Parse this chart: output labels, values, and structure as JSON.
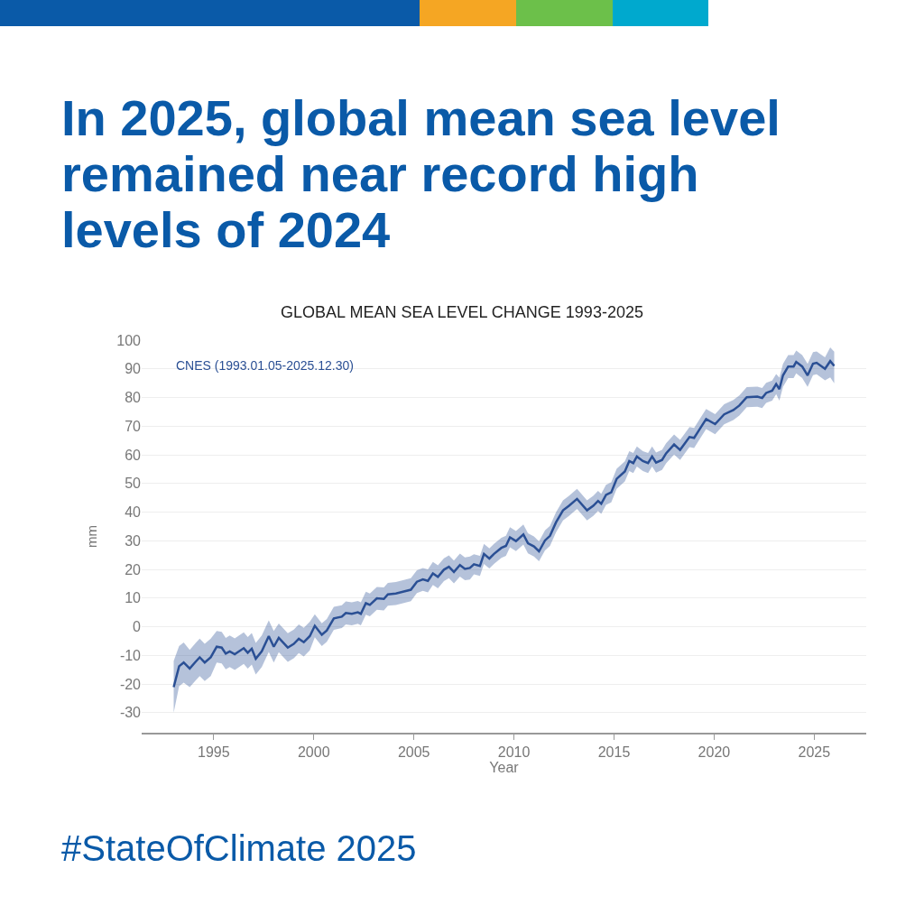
{
  "chart_data": {
    "type": "line",
    "title": "In 2025, global mean sea level remained near record high levels of 2024",
    "subtitle": "GLOBAL MEAN SEA LEVEL CHANGE 1993-2025",
    "xlabel": "Year",
    "ylabel": "mm",
    "annotations": [
      "#StateOfClimate 2025"
    ],
    "x": [
      1993.0,
      1993.27,
      1993.5,
      1993.8,
      1994.1,
      1994.3,
      1994.55,
      1994.85,
      1995.15,
      1995.4,
      1995.6,
      1995.8,
      1996.05,
      1996.5,
      1996.7,
      1996.9,
      1997.1,
      1997.4,
      1997.75,
      1998.0,
      1998.25,
      1998.7,
      1999.0,
      1999.25,
      1999.5,
      1999.8,
      2000.05,
      2000.4,
      2000.65,
      2001.0,
      2001.4,
      2001.6,
      2001.9,
      2002.2,
      2002.35,
      2002.6,
      2002.8,
      2003.15,
      2003.5,
      2003.7,
      2004.1,
      2004.5,
      2004.85,
      2005.15,
      2005.45,
      2005.7,
      2005.95,
      2006.2,
      2006.5,
      2006.75,
      2007.0,
      2007.3,
      2007.55,
      2007.8,
      2008.0,
      2008.3,
      2008.5,
      2008.77,
      2009.0,
      2009.37,
      2009.6,
      2009.8,
      2010.1,
      2010.47,
      2010.7,
      2011.0,
      2011.25,
      2011.55,
      2011.8,
      2012.1,
      2012.45,
      2012.75,
      2013.15,
      2013.65,
      2013.96,
      2014.2,
      2014.36,
      2014.6,
      2014.86,
      2015.13,
      2015.54,
      2015.76,
      2015.96,
      2016.14,
      2016.44,
      2016.7,
      2016.9,
      2017.1,
      2017.4,
      2017.6,
      2018.0,
      2018.3,
      2018.77,
      2019.0,
      2019.22,
      2019.6,
      2020.05,
      2020.5,
      2020.96,
      2021.26,
      2021.63,
      2022.16,
      2022.4,
      2022.6,
      2022.9,
      2023.1,
      2023.26,
      2023.44,
      2023.7,
      2023.97,
      2024.1,
      2024.4,
      2024.67,
      2024.94,
      2025.12,
      2025.54,
      2025.8,
      2026.0
    ],
    "series": [
      {
        "name": "CNES (1993.01.05-2025.12.30)",
        "color": "#2a4f94",
        "values": [
          -21.1,
          -13.8,
          -12.5,
          -14.6,
          -12.2,
          -10.7,
          -12.5,
          -10.7,
          -7.0,
          -7.3,
          -9.4,
          -8.6,
          -9.6,
          -7.5,
          -9.1,
          -7.7,
          -11.2,
          -8.6,
          -3.3,
          -7.0,
          -3.9,
          -7.3,
          -6.0,
          -4.2,
          -5.4,
          -3.3,
          0.3,
          -2.8,
          -1.3,
          2.9,
          3.5,
          4.8,
          4.5,
          5.0,
          4.5,
          8.2,
          7.6,
          9.9,
          9.7,
          11.3,
          11.6,
          12.3,
          12.9,
          15.7,
          16.5,
          16.0,
          18.6,
          17.4,
          19.9,
          20.9,
          19.1,
          21.5,
          20.2,
          20.5,
          21.8,
          21.2,
          25.4,
          23.8,
          25.4,
          27.5,
          28.2,
          31.2,
          29.9,
          32.2,
          29.1,
          28.0,
          26.3,
          30.1,
          31.7,
          36.4,
          40.6,
          42.2,
          44.6,
          40.6,
          42.2,
          43.9,
          42.9,
          46.0,
          46.9,
          51.6,
          54.2,
          57.8,
          57.1,
          59.4,
          57.8,
          57.1,
          59.4,
          57.3,
          58.2,
          60.5,
          63.6,
          61.7,
          66.2,
          65.9,
          68.3,
          72.5,
          70.7,
          74.1,
          75.6,
          77.2,
          80.1,
          80.3,
          79.8,
          81.6,
          82.4,
          84.7,
          82.9,
          87.7,
          90.8,
          90.8,
          92.4,
          90.8,
          87.7,
          91.8,
          92.1,
          90.0,
          92.7,
          91.0
        ],
        "lower": [
          -30,
          -20.8,
          -19.5,
          -21.1,
          -18.7,
          -17.2,
          -19,
          -17.2,
          -12.5,
          -12.8,
          -14.9,
          -14.1,
          -15.1,
          -13,
          -14.6,
          -13.2,
          -16.7,
          -14.1,
          -8.8,
          -12.5,
          -8.9,
          -12.3,
          -11,
          -9.2,
          -10.4,
          -8.3,
          -3.7,
          -6.8,
          -5.3,
          -1.1,
          -0.5,
          0.8,
          0.5,
          1,
          0.5,
          4.2,
          3.6,
          5.9,
          5.7,
          7.3,
          7.6,
          8.3,
          8.9,
          11.7,
          12.5,
          12,
          14.6,
          13.4,
          15.9,
          16.9,
          15.1,
          17.5,
          16.2,
          16.5,
          18.3,
          17.7,
          21.9,
          20.3,
          21.9,
          24,
          24.7,
          27.7,
          26.4,
          28.7,
          25.6,
          24.5,
          22.8,
          26.6,
          28.2,
          32.9,
          37.1,
          38.7,
          41.1,
          37.1,
          38.7,
          40.4,
          39.4,
          42.5,
          43.4,
          48.1,
          50.7,
          54.3,
          53.6,
          55.9,
          54.3,
          53.6,
          55.9,
          53.8,
          54.7,
          57,
          60.1,
          58.2,
          62.7,
          62.4,
          64.8,
          69,
          67.2,
          70.6,
          72.1,
          73.7,
          76.6,
          76.8,
          76.3,
          78.1,
          78.9,
          81.2,
          78.9,
          83.7,
          86.8,
          86.8,
          88.4,
          86.8,
          83.7,
          87.8,
          88.1,
          86,
          87,
          85
        ],
        "upper": [
          -12,
          -6.8,
          -5.5,
          -8.1,
          -5.7,
          -4.2,
          -6,
          -4.2,
          -1.5,
          -1.8,
          -3.9,
          -3.1,
          -4.1,
          -2,
          -3.6,
          -2.2,
          -5.7,
          -3.1,
          2.2,
          -1.5,
          1.1,
          -2.3,
          -1,
          0.8,
          -0.4,
          1.7,
          4.3,
          1.2,
          2.7,
          6.9,
          7.5,
          8.8,
          8.5,
          9,
          8.5,
          12.2,
          11.6,
          13.9,
          13.7,
          15.3,
          15.6,
          16.3,
          16.9,
          19.7,
          20.5,
          20,
          22.6,
          21.4,
          23.9,
          24.9,
          23.1,
          25.5,
          24.2,
          24.5,
          25.3,
          24.7,
          28.9,
          27.3,
          28.9,
          31,
          31.7,
          34.7,
          33.4,
          35.7,
          32.6,
          31.5,
          29.8,
          33.6,
          35.2,
          39.9,
          44.1,
          45.7,
          48.1,
          44.1,
          45.7,
          47.4,
          46.4,
          49.5,
          50.4,
          55.1,
          57.7,
          61.3,
          60.6,
          62.9,
          61.3,
          60.6,
          62.9,
          60.8,
          61.7,
          64,
          67.1,
          65.2,
          69.7,
          69.4,
          71.8,
          76,
          74.2,
          77.6,
          79.1,
          80.7,
          83.6,
          83.8,
          83.3,
          85.1,
          85.9,
          88.2,
          86.9,
          91.7,
          94.8,
          94.8,
          96.4,
          94.8,
          91.7,
          95.8,
          96.1,
          94,
          97.5,
          96
        ]
      }
    ],
    "xlim": [
      1991.4,
      2027.6
    ],
    "xticks": [
      1995,
      2000,
      2005,
      2010,
      2015,
      2020,
      2025
    ],
    "ylim": [
      -37,
      100
    ],
    "yticks": [
      -30,
      -20,
      -10,
      0,
      10,
      20,
      30,
      40,
      50,
      60,
      70,
      80,
      90,
      100
    ],
    "grid": "y",
    "legend": false,
    "marker": "none",
    "line_style": "solid"
  }
}
